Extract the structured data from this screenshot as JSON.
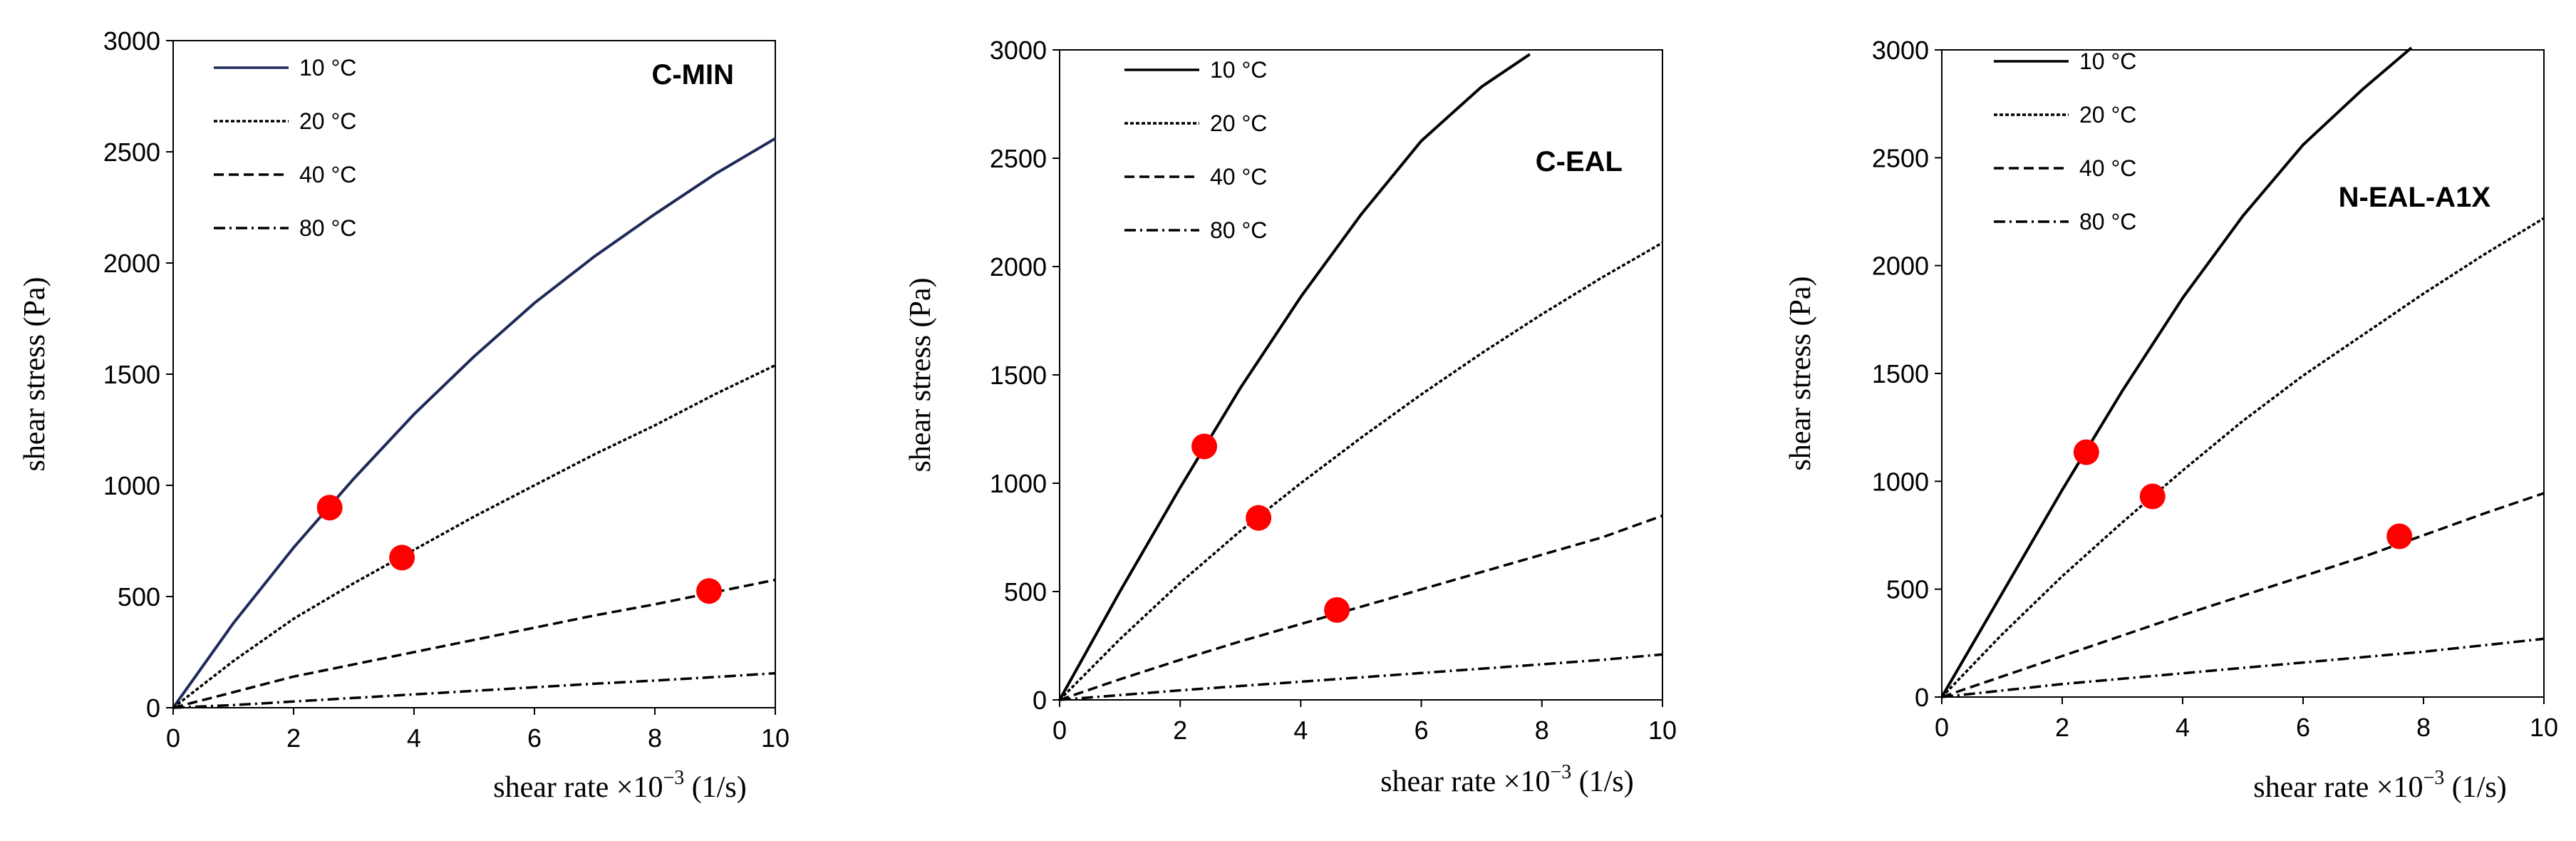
{
  "chart_data": [
    {
      "type": "line",
      "title": "C-MIN",
      "xlabel": "shear rate ×10",
      "xlabel_exp": "−3",
      "xlabel_unit": " (1/s)",
      "ylabel": "shear stress (Pa)",
      "xlim": [
        0,
        10
      ],
      "ylim": [
        0,
        3000
      ],
      "xticks": [
        0,
        2,
        4,
        6,
        8,
        10
      ],
      "yticks": [
        0,
        500,
        1000,
        1500,
        2000,
        2500,
        3000
      ],
      "legend_position": "top-left",
      "series": [
        {
          "name": "10 °C",
          "style": "solid",
          "color": "#1f2a5a",
          "x": [
            0,
            1,
            2,
            3,
            4,
            5,
            6,
            7,
            8,
            9,
            10
          ],
          "y": [
            0,
            380,
            720,
            1030,
            1320,
            1580,
            1820,
            2030,
            2220,
            2400,
            2560
          ]
        },
        {
          "name": "20 °C",
          "style": "dotted",
          "color": "#000000",
          "x": [
            0,
            1,
            2,
            3,
            4,
            5,
            6,
            7,
            8,
            9,
            10
          ],
          "y": [
            0,
            210,
            400,
            560,
            710,
            860,
            1000,
            1140,
            1270,
            1410,
            1540
          ]
        },
        {
          "name": "40 °C",
          "style": "dashed",
          "color": "#000000",
          "x": [
            0,
            1,
            2,
            3,
            4,
            5,
            6,
            7,
            8,
            9,
            10
          ],
          "y": [
            0,
            70,
            140,
            195,
            250,
            305,
            360,
            415,
            465,
            520,
            575
          ]
        },
        {
          "name": "80 °C",
          "style": "dashdot",
          "color": "#000000",
          "x": [
            0,
            1,
            2,
            3,
            4,
            5,
            6,
            7,
            8,
            9,
            10
          ],
          "y": [
            0,
            12,
            28,
            44,
            60,
            76,
            92,
            108,
            122,
            138,
            155
          ]
        }
      ],
      "markers": [
        {
          "x": 2.6,
          "y": 900
        },
        {
          "x": 3.8,
          "y": 675
        },
        {
          "x": 8.9,
          "y": 525
        }
      ]
    },
    {
      "type": "line",
      "title": "C-EAL",
      "xlabel": "shear rate ×10",
      "xlabel_exp": "−3",
      "xlabel_unit": " (1/s)",
      "ylabel": "shear stress (Pa)",
      "xlim": [
        0,
        10
      ],
      "ylim": [
        0,
        3000
      ],
      "xticks": [
        0,
        2,
        4,
        6,
        8,
        10
      ],
      "yticks": [
        0,
        500,
        1000,
        1500,
        2000,
        2500,
        3000
      ],
      "legend_position": "top-left",
      "series": [
        {
          "name": "10 °C",
          "style": "solid",
          "color": "#000000",
          "x": [
            0,
            1,
            2,
            3,
            4,
            5,
            6,
            7,
            7.8
          ],
          "y": [
            0,
            500,
            980,
            1440,
            1860,
            2240,
            2580,
            2830,
            2980
          ]
        },
        {
          "name": "20 °C",
          "style": "dotted",
          "color": "#000000",
          "x": [
            0,
            1,
            2,
            3,
            4,
            5,
            6,
            7,
            8,
            9,
            10
          ],
          "y": [
            0,
            280,
            540,
            780,
            1000,
            1210,
            1410,
            1600,
            1780,
            1950,
            2110
          ]
        },
        {
          "name": "40 °C",
          "style": "dashed",
          "color": "#000000",
          "x": [
            0,
            1,
            2,
            3,
            4,
            5,
            6,
            7,
            8,
            9,
            10
          ],
          "y": [
            0,
            95,
            185,
            270,
            350,
            430,
            510,
            590,
            670,
            750,
            850
          ]
        },
        {
          "name": "80 °C",
          "style": "dashdot",
          "color": "#000000",
          "x": [
            0,
            1,
            2,
            3,
            4,
            5,
            6,
            7,
            8,
            9,
            10
          ],
          "y": [
            0,
            22,
            44,
            64,
            84,
            104,
            124,
            144,
            164,
            185,
            210
          ]
        }
      ],
      "markers": [
        {
          "x": 2.4,
          "y": 1170
        },
        {
          "x": 3.3,
          "y": 840
        },
        {
          "x": 4.6,
          "y": 415
        }
      ]
    },
    {
      "type": "line",
      "title": "N-EAL-A1X",
      "xlabel": "shear rate ×10",
      "xlabel_exp": "−3",
      "xlabel_unit": " (1/s)",
      "ylabel": "shear stress (Pa)",
      "xlim": [
        0,
        10
      ],
      "ylim": [
        0,
        3000
      ],
      "xticks": [
        0,
        2,
        4,
        6,
        8,
        10
      ],
      "yticks": [
        0,
        500,
        1000,
        1500,
        2000,
        2500,
        3000
      ],
      "legend_position": "top-left",
      "series": [
        {
          "name": "10 °C",
          "style": "solid",
          "color": "#000000",
          "x": [
            0,
            1,
            2,
            3,
            4,
            5,
            6,
            7,
            7.8
          ],
          "y": [
            0,
            480,
            960,
            1420,
            1850,
            2230,
            2560,
            2820,
            3010
          ]
        },
        {
          "name": "20 °C",
          "style": "dotted",
          "color": "#000000",
          "x": [
            0,
            1,
            2,
            3,
            4,
            5,
            6,
            7,
            8,
            9,
            10
          ],
          "y": [
            0,
            290,
            560,
            810,
            1050,
            1280,
            1490,
            1680,
            1870,
            2050,
            2220
          ]
        },
        {
          "name": "40 °C",
          "style": "dashed",
          "color": "#000000",
          "x": [
            0,
            1,
            2,
            3,
            4,
            5,
            6,
            7,
            8,
            9,
            10
          ],
          "y": [
            0,
            95,
            190,
            285,
            380,
            470,
            560,
            650,
            750,
            850,
            945
          ]
        },
        {
          "name": "80 °C",
          "style": "dashdot",
          "color": "#000000",
          "x": [
            0,
            1,
            2,
            3,
            4,
            5,
            6,
            7,
            8,
            9,
            10
          ],
          "y": [
            0,
            30,
            60,
            85,
            110,
            135,
            160,
            185,
            210,
            240,
            270
          ]
        }
      ],
      "markers": [
        {
          "x": 2.4,
          "y": 1135
        },
        {
          "x": 3.5,
          "y": 930
        },
        {
          "x": 7.6,
          "y": 745
        }
      ]
    }
  ]
}
